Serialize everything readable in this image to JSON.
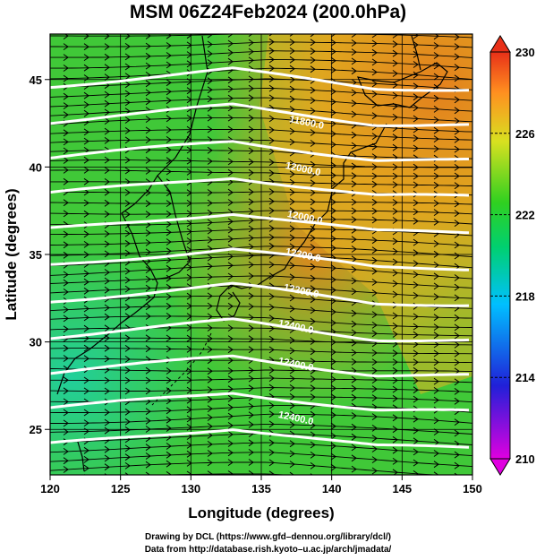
{
  "title": "MSM 06Z24Feb2024 (200.0hPa)",
  "axes": {
    "xlabel": "Longitude (degrees)",
    "ylabel": "Latitude  (degrees)",
    "xlim": [
      120,
      150
    ],
    "ylim": [
      22.4,
      47.6
    ],
    "xticks": [
      "120",
      "125",
      "130",
      "135",
      "140",
      "145",
      "150"
    ],
    "yticks": [
      "25",
      "30",
      "35",
      "40",
      "45"
    ]
  },
  "colorbar": {
    "min": 210,
    "max": 230,
    "ticks": [
      "210",
      "214",
      "218",
      "222",
      "226",
      "230"
    ],
    "colors": [
      "#d400d4",
      "#2222dd",
      "#00c8ff",
      "#00d070",
      "#22d020",
      "#d8e020",
      "#ff9020",
      "#e83018"
    ]
  },
  "contours": {
    "color": "#ffffff",
    "labels": [
      "11800.0",
      "12000.0",
      "12000.0",
      "12200.0",
      "12200.0",
      "12400.0",
      "12400.0",
      "12400.0"
    ]
  },
  "credits": {
    "line1": "Drawing by DCL (https://www.gfd–dennou.org/library/dcl/)",
    "line2": "Data from http://database.rish.kyoto–u.ac.jp/arch/jmadata/"
  }
}
